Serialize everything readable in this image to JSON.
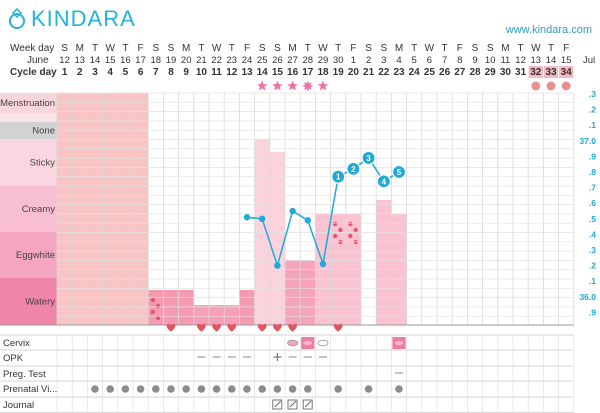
{
  "header": {
    "logo_text": "KINDARA",
    "site_url": "www.kindara.com"
  },
  "row_labels": {
    "week_day": "Week day",
    "month_start": "June",
    "month_end": "Jul",
    "cycle_day": "Cycle day"
  },
  "weekdays": [
    "S",
    "M",
    "T",
    "W",
    "T",
    "F",
    "S",
    "S",
    "M",
    "T",
    "W",
    "T",
    "F",
    "S",
    "S",
    "M",
    "T",
    "W",
    "T",
    "F",
    "S",
    "S",
    "M",
    "T",
    "W",
    "T",
    "F",
    "S",
    "S",
    "M",
    "T",
    "W",
    "T",
    "F"
  ],
  "dates": [
    "12",
    "13",
    "14",
    "15",
    "16",
    "17",
    "18",
    "19",
    "20",
    "21",
    "22",
    "23",
    "24",
    "25",
    "26",
    "27",
    "28",
    "29",
    "30",
    "1",
    "2",
    "3",
    "4",
    "5",
    "6",
    "7",
    "8",
    "9",
    "10",
    "11",
    "12",
    "13",
    "14",
    "15"
  ],
  "cycle_days": [
    "1",
    "2",
    "3",
    "4",
    "5",
    "6",
    "7",
    "8",
    "9",
    "10",
    "11",
    "12",
    "13",
    "14",
    "15",
    "16",
    "17",
    "18",
    "19",
    "20",
    "21",
    "22",
    "23",
    "24",
    "25",
    "26",
    "27",
    "28",
    "29",
    "30",
    "31",
    "32",
    "33",
    "34"
  ],
  "categories": {
    "menstruation": "Menstruation",
    "none": "None",
    "sticky": "Sticky",
    "creamy": "Creamy",
    "eggwhite": "Eggwhite",
    "watery": "Watery"
  },
  "temp_scale": [
    ".3",
    ".2",
    ".1",
    "37.0",
    ".9",
    ".8",
    ".7",
    ".6",
    ".5",
    ".4",
    ".3",
    ".2",
    ".1",
    "36.0",
    ".9"
  ],
  "bottom_rows": {
    "cervix": "Cervix",
    "opk": "OPK",
    "preg_test": "Preg. Test",
    "prenatal": "Prenatal Vi...",
    "journal": "Journal"
  },
  "menstruation_days": [
    1,
    2,
    3,
    4,
    5,
    6
  ],
  "period_start_days": [
    32,
    33,
    34
  ],
  "ovulation_stars": [
    14,
    15,
    16,
    17,
    18
  ],
  "ovulation_markers": [
    {
      "day": 14,
      "kind": "star"
    },
    {
      "day": 15,
      "kind": "star"
    },
    {
      "day": 16,
      "kind": "star"
    },
    {
      "day": 17,
      "kind": "burst"
    },
    {
      "day": 18,
      "kind": "star"
    }
  ],
  "fluid": [
    {
      "day": 7,
      "level": "watery-low",
      "dots": true
    },
    {
      "day": 8,
      "level": "watery-low",
      "dots": false
    },
    {
      "day": 9,
      "level": "watery-low",
      "dots": false
    },
    {
      "day": 10,
      "level": "watery-min",
      "dots": false
    },
    {
      "day": 11,
      "level": "watery-min",
      "dots": false
    },
    {
      "day": 12,
      "level": "watery-min",
      "dots": false
    },
    {
      "day": 13,
      "level": "watery-low",
      "dots": false
    },
    {
      "day": 14,
      "level": "sticky",
      "dots": false
    },
    {
      "day": 15,
      "level": "sticky-mid",
      "dots": false
    },
    {
      "day": 16,
      "level": "eggwhite-low",
      "dots": false
    },
    {
      "day": 17,
      "level": "eggwhite-low",
      "dots": false
    },
    {
      "day": 18,
      "level": "creamy",
      "dots": false
    },
    {
      "day": 19,
      "level": "creamy",
      "dots": true
    },
    {
      "day": 20,
      "level": "creamy",
      "dots": true
    },
    {
      "day": 22,
      "level": "creamy-high",
      "dots": false
    },
    {
      "day": 23,
      "level": "creamy",
      "dots": false
    }
  ],
  "temperature": [
    {
      "day": 13,
      "value": 36.51,
      "label": ""
    },
    {
      "day": 14,
      "value": 36.5,
      "label": ""
    },
    {
      "day": 15,
      "value": 36.2,
      "label": ""
    },
    {
      "day": 16,
      "value": 36.55,
      "label": ""
    },
    {
      "day": 17,
      "value": 36.49,
      "label": ""
    },
    {
      "day": 18,
      "value": 36.21,
      "label": ""
    },
    {
      "day": 19,
      "value": 36.77,
      "label": "1"
    },
    {
      "day": 20,
      "value": 36.82,
      "label": "2"
    },
    {
      "day": 21,
      "value": 36.89,
      "label": "3"
    },
    {
      "day": 22,
      "value": 36.74,
      "label": "4"
    },
    {
      "day": 23,
      "value": 36.8,
      "label": "5"
    }
  ],
  "intercourse_days": [
    8,
    10,
    11,
    12,
    14,
    15,
    16,
    19
  ],
  "cervix_marks": [
    {
      "day": 16,
      "kind": "oval-soft"
    },
    {
      "day": 17,
      "kind": "box"
    },
    {
      "day": 18,
      "kind": "oval"
    },
    {
      "day": 23,
      "kind": "box"
    }
  ],
  "opk_marks": [
    {
      "day": 10,
      "kind": "neg"
    },
    {
      "day": 11,
      "kind": "neg"
    },
    {
      "day": 12,
      "kind": "neg"
    },
    {
      "day": 13,
      "kind": "neg"
    },
    {
      "day": 15,
      "kind": "pos"
    },
    {
      "day": 16,
      "kind": "neg"
    },
    {
      "day": 17,
      "kind": "neg"
    },
    {
      "day": 18,
      "kind": "neg"
    }
  ],
  "preg_test_marks": [
    {
      "day": 23,
      "kind": "neg"
    }
  ],
  "prenatal_days": [
    3,
    4,
    5,
    6,
    7,
    8,
    9,
    10,
    11,
    12,
    13,
    14,
    15,
    16,
    17,
    19,
    21,
    23
  ],
  "journal_days": [
    15,
    16,
    17
  ],
  "colors": {
    "accent": "#25b3d8",
    "menstruation": "#f9c4c4",
    "label_bg_menstruation": "#f8d6dc",
    "label_bg_none": "#d2d2d2",
    "label_bg_sticky": "#fad6e0",
    "label_bg_creamy": "#f8bfd0",
    "label_bg_eggwhite": "#f4a6bf",
    "label_bg_watery": "#ef86a7",
    "heart": "#e05564",
    "star": "#f070a8",
    "temp": "#1fa9d6"
  }
}
